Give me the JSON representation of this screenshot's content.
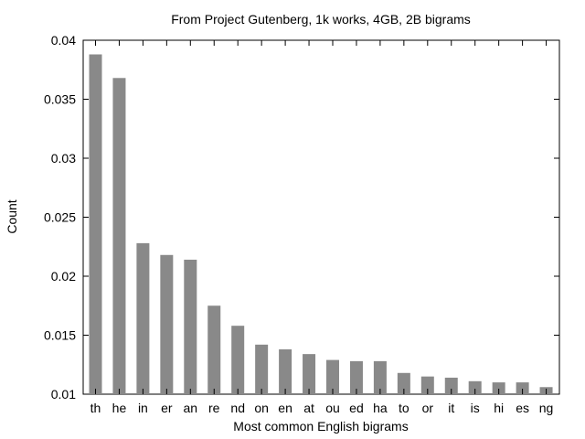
{
  "chart_data": {
    "type": "bar",
    "title": "From Project Gutenberg, 1k works, 4GB, 2B bigrams",
    "xlabel": "Most common English bigrams",
    "ylabel": "Count",
    "ylim": [
      0.01,
      0.04
    ],
    "yticks": [
      "0.01",
      "0.015",
      "0.02",
      "0.025",
      "0.03",
      "0.035",
      "0.04"
    ],
    "categories": [
      "th",
      "he",
      "in",
      "er",
      "an",
      "re",
      "nd",
      "on",
      "en",
      "at",
      "ou",
      "ed",
      "ha",
      "to",
      "or",
      "it",
      "is",
      "hi",
      "es",
      "ng"
    ],
    "values": [
      0.0388,
      0.0368,
      0.0228,
      0.0218,
      0.0214,
      0.0175,
      0.0158,
      0.0142,
      0.0138,
      0.0134,
      0.0129,
      0.0128,
      0.0128,
      0.0118,
      0.0115,
      0.0114,
      0.0111,
      0.011,
      0.011,
      0.0106
    ],
    "grid": false,
    "bar_color": "#898989"
  }
}
